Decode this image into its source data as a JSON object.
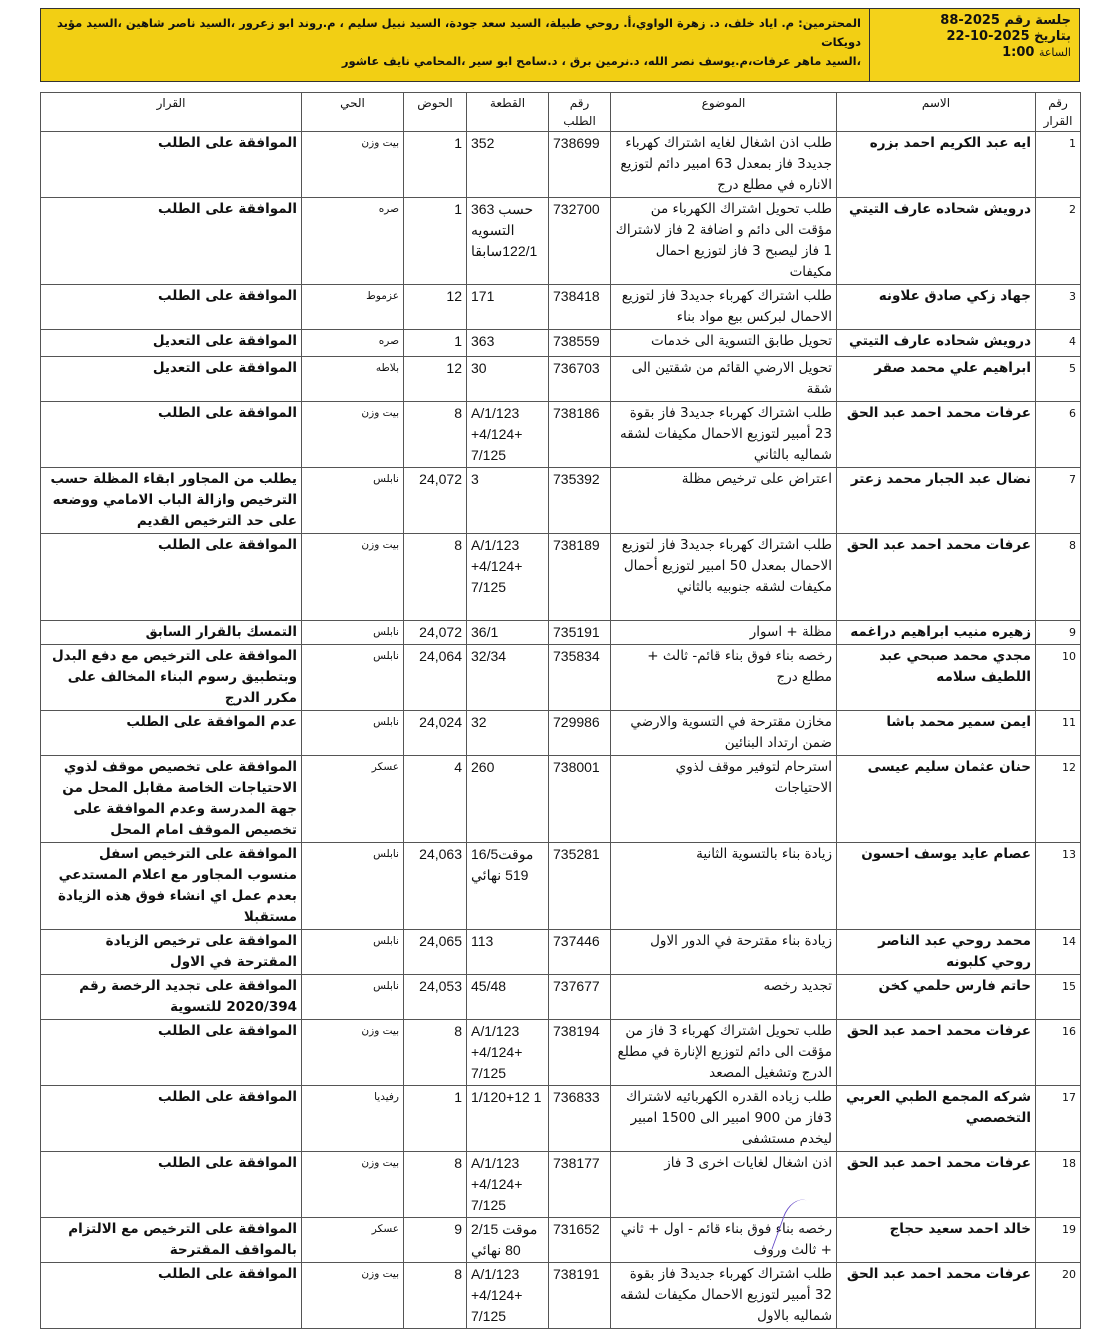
{
  "header": {
    "session_line": "جلسة رقم 2025-88",
    "date_line": "بتاريخ 2025-10-22",
    "time_label": "الساعة",
    "time_value": "1:00",
    "attendees_line1": "المحترمين: م. اياد خلف، د. زهرة الواوي،أ. روحي طبيلة، السيد سعد جودة، السيد نبيل سليم ، م.روند ابو زعرور ،السيد ناصر شاهين ،السيد مؤيد دويكات",
    "attendees_line2": "،السيد ماهر عرفات،م.يوسف نصر الله، د.نرمين برق ، د.سامح ابو سير ،المحامي نايف عاشور",
    "highlight_color": "#f2cf14"
  },
  "table": {
    "columns": [
      "رقم القرار",
      "الاسم",
      "الموضوع",
      "رقم الطلب",
      "القطعة",
      "الحوض",
      "الحي",
      "القرار"
    ],
    "rows": [
      {
        "no": "1",
        "name": "ايه عبد الكريم احمد بزره",
        "subject": "طلب  اذن اشغال لغايه اشتراك كهرباء جديد3 فاز بمعدل 63 امبير دائم  لتوزيع الاناره في مطلع درج",
        "request": "738699",
        "parcel": "352",
        "basin": "1",
        "district": "بيت وزن",
        "decision": "الموافقة على الطلب"
      },
      {
        "no": "2",
        "name": "درويش شحاده عارف التيتي",
        "subject": "طلب  تحويل اشتراك الكهرباء من مؤقت الى دائم و اضافة 2 فاز لاشتراك 1 فاز ليصبح 3 فاز لتوزيع احمال مكيفات",
        "request": "732700",
        "parcel": "363 حسب التسويه 122/1سابقا",
        "basin": "1",
        "district": "صره",
        "decision": "الموافقة على الطلب"
      },
      {
        "no": "3",
        "name": "جهاد زكي صادق علاونه",
        "subject": "طلب  اشتراك كهرباء جديد3 فاز لتوزيع الاحمال لبركس بيع مواد بناء",
        "request": "738418",
        "parcel": "171",
        "basin": "12",
        "district": "عزموط",
        "decision": "الموافقة على الطلب"
      },
      {
        "no": "4",
        "name": "درويش شحاده عارف التيتي",
        "subject": "تحويل طابق التسوية الى خدمات",
        "request": "738559",
        "parcel": "363",
        "basin": "1",
        "district": "صره",
        "decision": "الموافقة على التعديل"
      },
      {
        "no": "5",
        "name": "ابراهيم علي محمد صقر",
        "subject": "تحويل الارضي القائم من شقتين الى شقة",
        "request": "736703",
        "parcel": "30",
        "basin": "12",
        "district": "بلاطه",
        "decision": "الموافقة على التعديل"
      },
      {
        "no": "6",
        "name": "عرفات محمد احمد عبد الحق",
        "subject": "طلب  اشتراك كهرباء جديد3 فاز بقوة 23 أمبير لتوزيع الاحمال مكيفات لشقه شماليه بالثاني",
        "request": "738186",
        "parcel": "A/1/123 +4/124+ 7/125",
        "basin": "8",
        "district": "بيت وزن",
        "decision": "الموافقة على الطلب"
      },
      {
        "no": "7",
        "name": "نضال عبد الجبار محمد زعتر",
        "subject": "اعتراض على ترخيص مظلة",
        "request": "735392",
        "parcel": "3",
        "basin": "24,072",
        "district": "نابلس",
        "decision": "يطلب من المجاور ابقاء المظلة حسب الترخيص وازالة الباب الامامي ووضعه على حد الترخيص القديم"
      },
      {
        "no": "8",
        "name": "عرفات محمد احمد عبد الحق",
        "subject": "طلب  اشتراك كهرباء جديد3 فاز لتوزيع الاحمال بمعدل 50 امبير لتوزيع أحمال مكيفات  لشقه جنوبيه بالثاني",
        "request": "738189",
        "parcel": "A/1/123 +4/124+ 7/125",
        "basin": "8",
        "district": "بيت وزن",
        "decision": "الموافقة على الطلب"
      },
      {
        "no": "9",
        "name": "زهيره منيب ابراهيم دراغمه",
        "subject": "مظلة + اسوار",
        "request": "735191",
        "parcel": "36/1",
        "basin": "24,072",
        "district": "نابلس",
        "decision": "التمسك بالقرار السابق"
      },
      {
        "no": "10",
        "name": "مجدي محمد صبحي عبد اللطيف سلامه",
        "subject": "رخصه بناء فوق بناء قائم- ثالث + مطلع درج",
        "request": "735834",
        "parcel": "32/34",
        "basin": "24,064",
        "district": "نابلس",
        "decision": "الموافقة على الترخيص مع دفع البدل وبتطبيق رسوم البناء المخالف على مكرر الدرج"
      },
      {
        "no": "11",
        "name": "ايمن سمير محمد باشا",
        "subject": "مخازن مقترحة في التسوية والارضي ضمن ارتداد البنائين",
        "request": "729986",
        "parcel": "32",
        "basin": "24,024",
        "district": "نابلس",
        "decision": "عدم الموافقة على الطلب"
      },
      {
        "no": "12",
        "name": "حنان عثمان سليم عيسى",
        "subject": "استرحام لتوفير موقف لذوي الاحتياجات",
        "request": "738001",
        "parcel": "260",
        "basin": "4",
        "district": "عسكر",
        "decision": "الموافقة على تخصيص موقف لذوي الاحتياجات الخاصة مقابل المحل من جهة المدرسة وعدم الموافقة على تخصيص الموقف امام المحل"
      },
      {
        "no": "13",
        "name": "عصام عايد يوسف احسون",
        "subject": "زيادة بناء بالتسوية الثانية",
        "request": "735281",
        "parcel": "16/5موقت 519 نهائي",
        "basin": "24,063",
        "district": "نابلس",
        "decision": "الموافقة على الترخيص اسفل منسوب المجاور مع اعلام المستدعي بعدم عمل اي انشاء فوق هذه الزيادة مستقبلا"
      },
      {
        "no": "14",
        "name": "محمد روحي عبد الناصر روحي كلبونه",
        "subject": "زيادة بناء مقترحة في الدور الاول",
        "request": "737446",
        "parcel": "113",
        "basin": "24,065",
        "district": "نابلس",
        "decision": "الموافقة على ترخيص الزيادة المقترحة في الاول"
      },
      {
        "no": "15",
        "name": "حاتم فارس حلمي كخن",
        "subject": "تجديد رخصه",
        "request": "737677",
        "parcel": "45/48",
        "basin": "24,053",
        "district": "نابلس",
        "decision": "الموافقة على تجديد الرخصة رقم 2020/394 للتسوية"
      },
      {
        "no": "16",
        "name": "عرفات محمد احمد عبد الحق",
        "subject": "طلب  تحويل اشتراك كهرباء 3 فاز من مؤقت الى دائم لتوزيع الإنارة في مطلع الدرج وتشغيل المصعد",
        "request": "738194",
        "parcel": "A/1/123 +4/124+ 7/125",
        "basin": "8",
        "district": "بيت وزن",
        "decision": "الموافقة على الطلب"
      },
      {
        "no": "17",
        "name": "شركه المجمع الطبي العربي التخصصي",
        "subject": "طلب  زياده القدره الكهربائيه لاشتراك 3فاز من 900 امبير الى 1500 امبير ليخدم مستشفى",
        "request": "736833",
        "parcel": "1/120+12 1",
        "basin": "1",
        "district": "رفيديا",
        "decision": "الموافقة على الطلب"
      },
      {
        "no": "18",
        "name": "عرفات محمد احمد عبد الحق",
        "subject": "اذن اشغال لغايات اخرى 3 فاز",
        "request": "738177",
        "parcel": "A/1/123 +4/124+ 7/125",
        "basin": "8",
        "district": "بيت وزن",
        "decision": "الموافقة على الطلب"
      },
      {
        "no": "19",
        "name": "خالد احمد سعيد حجاج",
        "subject": "رخصه بناء فوق بناء قائم - اول + ثاني + ثالث وروف",
        "request": "731652",
        "parcel": "2/15 موقت 80 نهائي",
        "basin": "9",
        "district": "عسكر",
        "decision": "الموافقة على الترخيص مع الالتزام بالمواقف المقترحة"
      },
      {
        "no": "20",
        "name": "عرفات محمد احمد عبد الحق",
        "subject": "طلب  اشتراك كهرباء جديد3 فاز بقوة 32 أمبير  لتوزيع الاحمال مكيفات لشقه شماليه بالاول",
        "request": "738191",
        "parcel": "A/1/123 +4/124+ 7/125",
        "basin": "8",
        "district": "بيت وزن",
        "decision": "الموافقة على الطلب"
      }
    ]
  }
}
